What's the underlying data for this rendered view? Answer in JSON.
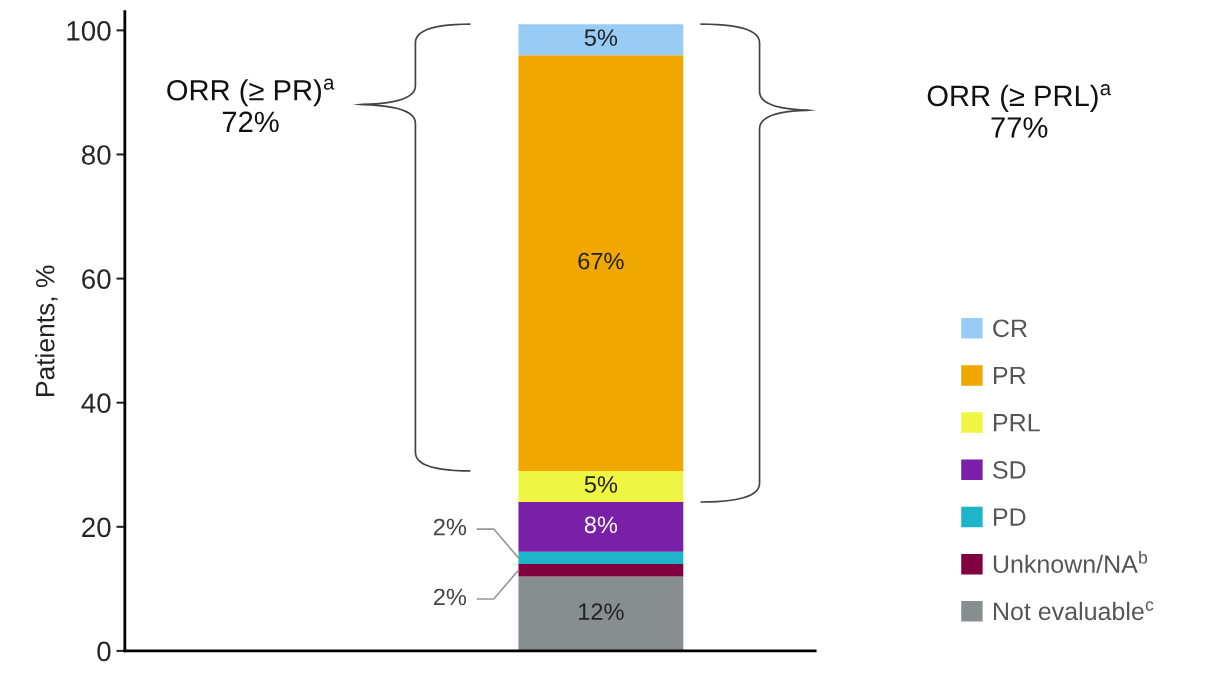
{
  "chart_data": {
    "type": "bar",
    "stacked": true,
    "categories": [
      null
    ],
    "ylabel": "Patients, %",
    "ylim": [
      0,
      103
    ],
    "yticks": [
      0,
      20,
      40,
      60,
      80,
      100
    ],
    "grid": false,
    "legend": "right",
    "data_labels": true,
    "series": [
      {
        "name": "Not evaluable$^{c}$",
        "color": "#888e90",
        "values": [
          12
        ],
        "value_labels": [
          "12%"
        ]
      },
      {
        "name": "Unknown/NA$^{b}$",
        "color": "#800040",
        "values": [
          2
        ],
        "value_labels": [
          "2%"
        ]
      },
      {
        "name": "PD",
        "color": "#1fb5c8",
        "values": [
          2
        ],
        "value_labels": [
          "2%"
        ]
      },
      {
        "name": "SD",
        "color": "#7a1fa8",
        "values": [
          8
        ],
        "value_labels": [
          "8%"
        ]
      },
      {
        "name": "PRL",
        "color": "#eef542",
        "values": [
          5
        ],
        "value_labels": [
          "5%"
        ]
      },
      {
        "name": "PR",
        "color": "#f0a800",
        "values": [
          67
        ],
        "value_labels": [
          "67%"
        ]
      },
      {
        "name": "CR",
        "color": "#99ccf5",
        "values": [
          5
        ],
        "value_labels": [
          "5%"
        ]
      }
    ],
    "annotations": [
      "ORR (≥ PR)$^{a}$\n72%",
      "ORR (≥ PRL)$^{a}$\n77%"
    ]
  }
}
